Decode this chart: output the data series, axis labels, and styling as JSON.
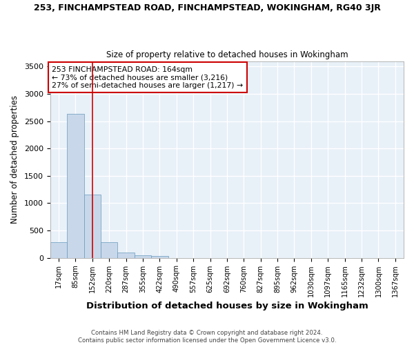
{
  "title1": "253, FINCHAMPSTEAD ROAD, FINCHAMPSTEAD, WOKINGHAM, RG40 3JR",
  "title2": "Size of property relative to detached houses in Wokingham",
  "xlabel": "Distribution of detached houses by size in Wokingham",
  "ylabel": "Number of detached properties",
  "footer1": "Contains HM Land Registry data © Crown copyright and database right 2024.",
  "footer2": "Contains public sector information licensed under the Open Government Licence v3.0.",
  "bar_labels": [
    "17sqm",
    "85sqm",
    "152sqm",
    "220sqm",
    "287sqm",
    "355sqm",
    "422sqm",
    "490sqm",
    "557sqm",
    "625sqm",
    "692sqm",
    "760sqm",
    "827sqm",
    "895sqm",
    "962sqm",
    "1030sqm",
    "1097sqm",
    "1165sqm",
    "1232sqm",
    "1300sqm",
    "1367sqm"
  ],
  "bar_values": [
    280,
    2640,
    1155,
    285,
    95,
    45,
    28,
    0,
    0,
    0,
    0,
    0,
    0,
    0,
    0,
    0,
    0,
    0,
    0,
    0,
    0
  ],
  "bar_color": "#c8d8ea",
  "bar_edge_color": "#6699bb",
  "bg_color": "#e8f0f8",
  "grid_color": "#ffffff",
  "annotation_text": "253 FINCHAMPSTEAD ROAD: 164sqm\n← 73% of detached houses are smaller (3,216)\n27% of semi-detached houses are larger (1,217) →",
  "vline_x_index": 2,
  "vline_color": "#cc0000",
  "ylim": [
    0,
    3600
  ],
  "yticks": [
    0,
    500,
    1000,
    1500,
    2000,
    2500,
    3000,
    3500
  ]
}
